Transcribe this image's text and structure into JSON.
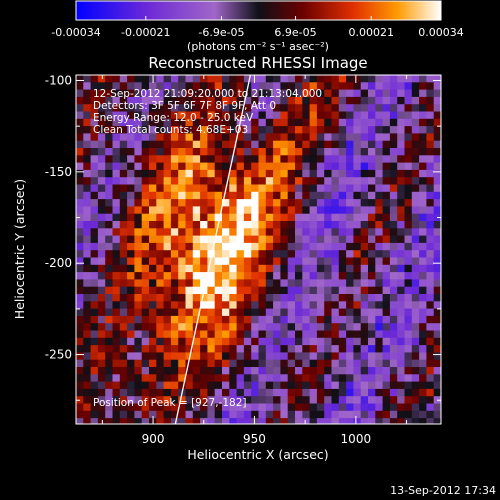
{
  "chart_data": {
    "type": "heatmap",
    "title": "Reconstructed RHESSI Image",
    "xlabel": "Heliocentric X (arcsec)",
    "ylabel": "Heliocentric Y (arcsec)",
    "xlim": [
      862,
      1042
    ],
    "ylim": [
      -288,
      -97
    ],
    "x_ticks": [
      900,
      950,
      1000
    ],
    "x_tick_labels": [
      "900",
      "950",
      "1000"
    ],
    "y_ticks": [
      -100,
      -150,
      -200,
      -250
    ],
    "y_tick_labels": [
      "-100",
      "-150",
      "-200",
      "-250"
    ],
    "colorbar": {
      "range": [
        -0.00034,
        0.00034
      ],
      "tick_values": [
        -0.00034,
        -0.00021,
        -6.9e-05,
        6.9e-05,
        0.00021,
        0.00034
      ],
      "tick_labels": [
        "-0.00034",
        "-0.00021",
        "-6.9e-05",
        "6.9e-05",
        "0.00021",
        "0.00034"
      ],
      "units_label": "(photons cm⁻² s⁻¹ asec⁻²)",
      "colors": [
        "#0000ff",
        "#6e2bd6",
        "#a066c8",
        "#1a1a2a",
        "#700000",
        "#e03000",
        "#ff9a00",
        "#ffffff"
      ]
    },
    "annotations": {
      "time_range": "12-Sep-2012 21:09:20.000 to 21:13:04.000",
      "detectors": "Detectors: 3F 5F 6F 7F 8F 9F, Att 0",
      "energy_range": "Energy Range: 12.0 - 25.0 keV",
      "clean_counts": "Clean     Total counts: 4.68E+03",
      "peak_position": "Position of Peak = [927,-182]"
    },
    "limb_line": [
      [
        911,
        -288
      ],
      [
        948,
        -97
      ]
    ],
    "grid": false,
    "legend": "colorbar-top"
  },
  "footer": {
    "timestamp": "13-Sep-2012 17:34"
  }
}
